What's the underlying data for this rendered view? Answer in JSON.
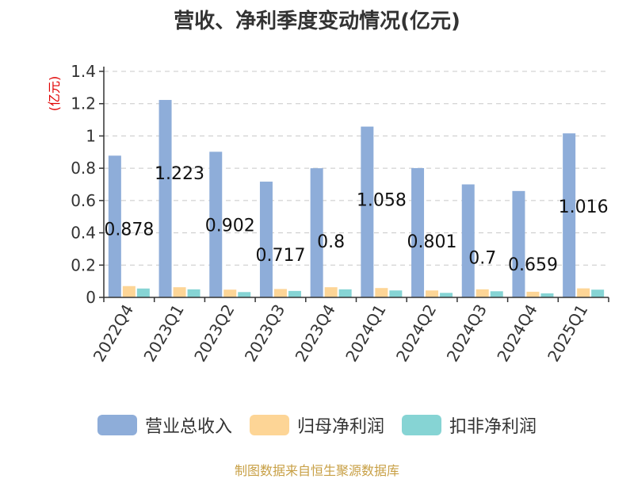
{
  "chart_data": {
    "type": "bar",
    "title": "营收、净利季度变动情况(亿元)",
    "unit_label": "(亿元)",
    "categories": [
      "2022Q4",
      "2023Q1",
      "2023Q2",
      "2023Q3",
      "2023Q4",
      "2024Q1",
      "2024Q2",
      "2024Q3",
      "2024Q4",
      "2025Q1"
    ],
    "series": [
      {
        "name": "营业总收入",
        "color": "#8eadd9",
        "values": [
          0.878,
          1.223,
          0.902,
          0.717,
          0.8,
          1.058,
          0.801,
          0.7,
          0.659,
          1.016
        ],
        "labels": [
          "0.878",
          "1.223",
          "0.902",
          "0.717",
          "0.8",
          "1.058",
          "0.801",
          "0.7",
          "0.659",
          "1.016"
        ]
      },
      {
        "name": "归母净利润",
        "color": "#fdd596",
        "values": [
          0.07,
          0.063,
          0.048,
          0.052,
          0.063,
          0.058,
          0.043,
          0.05,
          0.035,
          0.056
        ]
      },
      {
        "name": "扣非净利润",
        "color": "#86d4d4",
        "values": [
          0.055,
          0.05,
          0.033,
          0.04,
          0.05,
          0.043,
          0.028,
          0.038,
          0.025,
          0.048
        ]
      }
    ],
    "ylim": [
      0,
      1.4
    ],
    "yticks": [
      "0",
      "0.2",
      "0.4",
      "0.6",
      "0.8",
      "1",
      "1.2",
      "1.4"
    ],
    "grid": true,
    "legend_position": "bottom"
  },
  "source": "制图数据来自恒生聚源数据库"
}
